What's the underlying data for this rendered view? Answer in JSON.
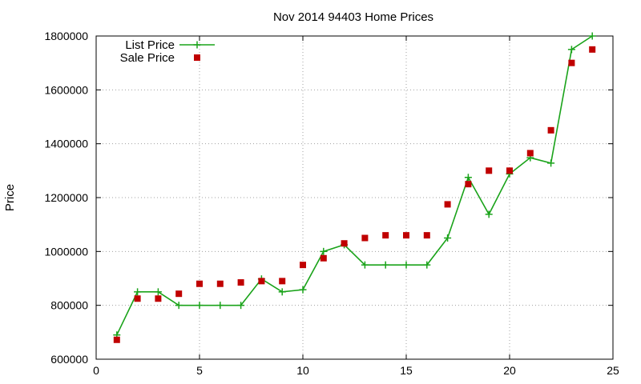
{
  "chart_data": {
    "type": "line",
    "title": "Nov 2014 94403 Home Prices",
    "xlabel": "",
    "ylabel": "Price",
    "xlim": [
      0,
      25
    ],
    "ylim": [
      600000,
      1800000
    ],
    "xticks": [
      0,
      5,
      10,
      15,
      20,
      25
    ],
    "yticks": [
      600000,
      800000,
      1000000,
      1200000,
      1400000,
      1600000,
      1800000
    ],
    "grid": true,
    "legend_position": "top-left",
    "series": [
      {
        "name": "List Price",
        "style": "line+cross",
        "color": "#1aa31a",
        "x": [
          1,
          2,
          3,
          4,
          5,
          6,
          7,
          8,
          9,
          10,
          11,
          12,
          13,
          14,
          15,
          16,
          17,
          18,
          19,
          20,
          21,
          22,
          23,
          24
        ],
        "y": [
          690000,
          850000,
          850000,
          800000,
          800000,
          800000,
          800000,
          898000,
          850000,
          858000,
          1000000,
          1025000,
          950000,
          950000,
          950000,
          950000,
          1050000,
          1275000,
          1138000,
          1288000,
          1348000,
          1328000,
          1750000,
          1800000
        ]
      },
      {
        "name": "Sale Price",
        "style": "square",
        "color": "#c00000",
        "x": [
          1,
          2,
          3,
          4,
          5,
          6,
          7,
          8,
          9,
          10,
          11,
          12,
          13,
          14,
          15,
          16,
          17,
          18,
          19,
          20,
          21,
          22,
          23,
          24
        ],
        "y": [
          672000,
          825000,
          825000,
          843000,
          880000,
          880000,
          885000,
          890000,
          890000,
          950000,
          975000,
          1030000,
          1050000,
          1060000,
          1060000,
          1060000,
          1175000,
          1250000,
          1300000,
          1300000,
          1365000,
          1450000,
          1700000,
          1750000
        ]
      }
    ]
  }
}
